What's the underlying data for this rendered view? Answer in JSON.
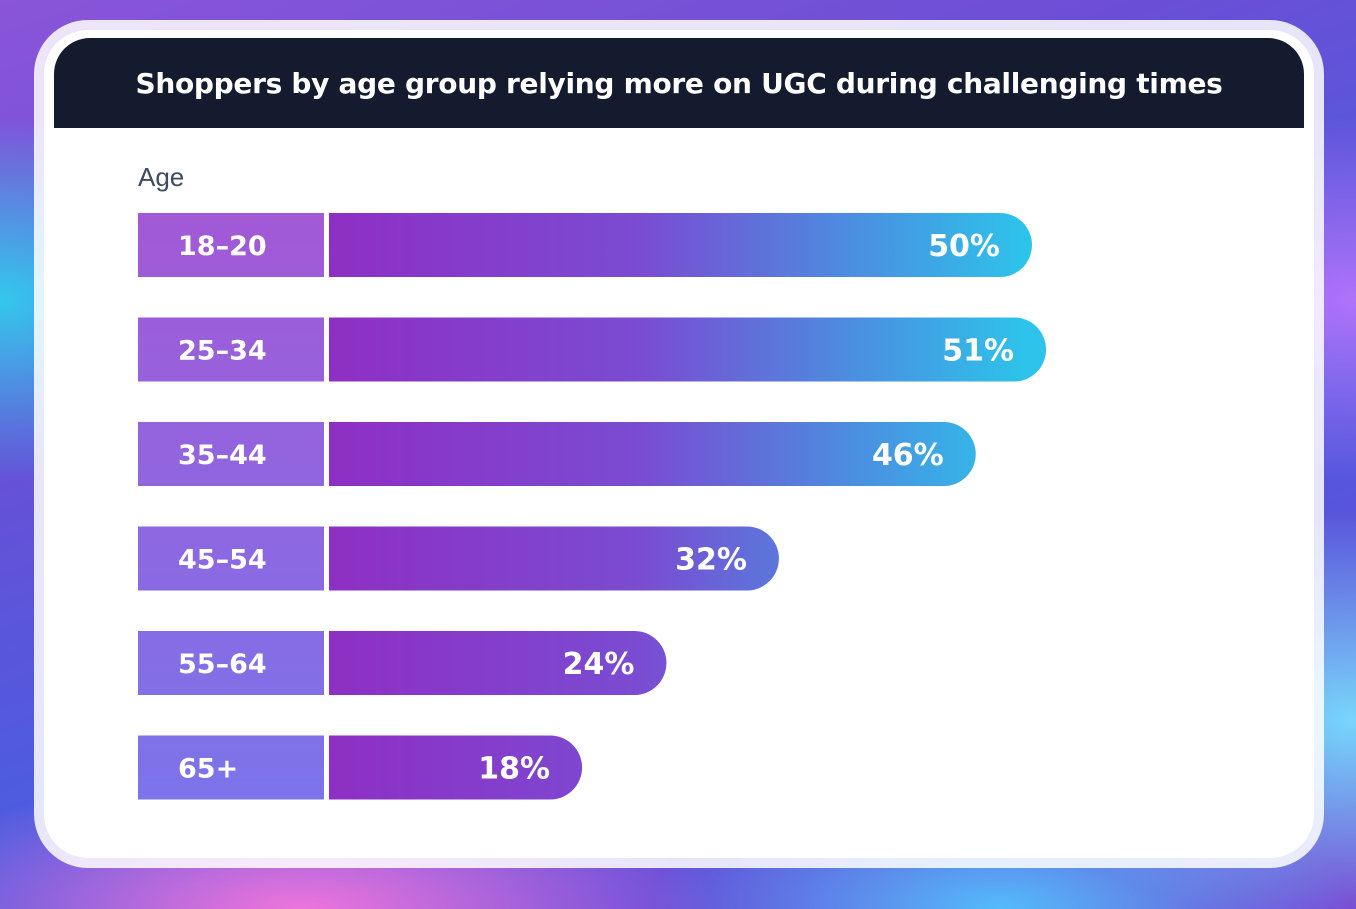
{
  "chart_data": {
    "type": "bar",
    "orientation": "horizontal",
    "title": "Shoppers by age group relying more on UGC during challenging times",
    "ylabel": "Age",
    "xlabel": "",
    "categories": [
      "18–20",
      "25–34",
      "35–44",
      "45–54",
      "55–64",
      "65+"
    ],
    "values": [
      50,
      51,
      46,
      32,
      24,
      18
    ],
    "value_labels": [
      "50%",
      "51%",
      "46%",
      "32%",
      "24%",
      "18%"
    ],
    "xlim": [
      0,
      51
    ],
    "grid": false,
    "legend": "none"
  },
  "colors": {
    "header_bg": "#141b2e",
    "bar_start": "#8e2fc4",
    "bar_end": "#2dc3ea",
    "label_box_top": "#a259d6",
    "label_box_bottom": "#7c74ea"
  }
}
